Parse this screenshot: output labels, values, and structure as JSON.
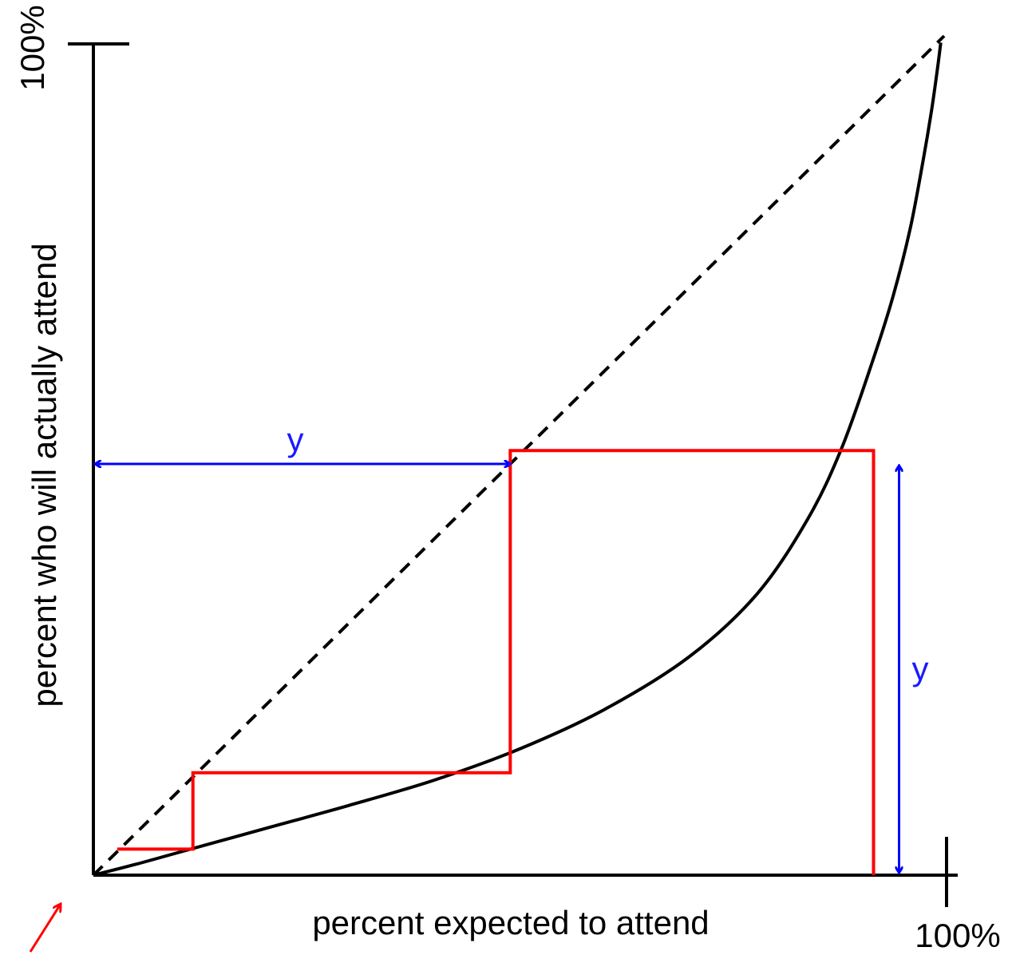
{
  "chart_data": {
    "type": "line",
    "xlabel": "percent expected to attend",
    "ylabel": "percent  who will actually attend",
    "x_max_label": "100%",
    "y_max_label": "100%",
    "xlim": [
      0,
      100
    ],
    "ylim": [
      0,
      100
    ],
    "grid": false,
    "series": [
      {
        "role": "curve",
        "color": "#000000",
        "style": "solid",
        "x": [
          0,
          5,
          10,
          20,
          30,
          40,
          50,
          60,
          70,
          78,
          84,
          88,
          91.7,
          94,
          96,
          97.5,
          98.5,
          99.2,
          99.6
        ],
        "y": [
          0,
          1.3,
          2.7,
          5.5,
          8.3,
          11.3,
          15.0,
          19.7,
          26.0,
          33.5,
          42.5,
          51.0,
          61.6,
          69.0,
          77.0,
          85.0,
          91.0,
          96.0,
          99.2
        ]
      },
      {
        "role": "diagonal",
        "color": "#000000",
        "style": "dashed",
        "x": [
          0,
          100
        ],
        "y": [
          0,
          100
        ]
      },
      {
        "role": "staircase",
        "color": "#ff0000",
        "style": "solid",
        "x": [
          91.7,
          91.7,
          49.0,
          49.0,
          11.7,
          11.7,
          2.8
        ],
        "y": [
          0,
          50.6,
          50.6,
          12.2,
          12.2,
          3.1,
          3.1
        ]
      }
    ],
    "annotations": {
      "horizontal_arrow": {
        "label": "y",
        "color": "#0000ff",
        "x_from": 0,
        "x_to": 49.0,
        "y": 49.0
      },
      "vertical_arrow": {
        "label": "y",
        "color": "#0000ff",
        "x": 94.7,
        "y_from": 0,
        "y_to": 49.0
      },
      "corner_arrow_color": "#ff0000"
    }
  }
}
